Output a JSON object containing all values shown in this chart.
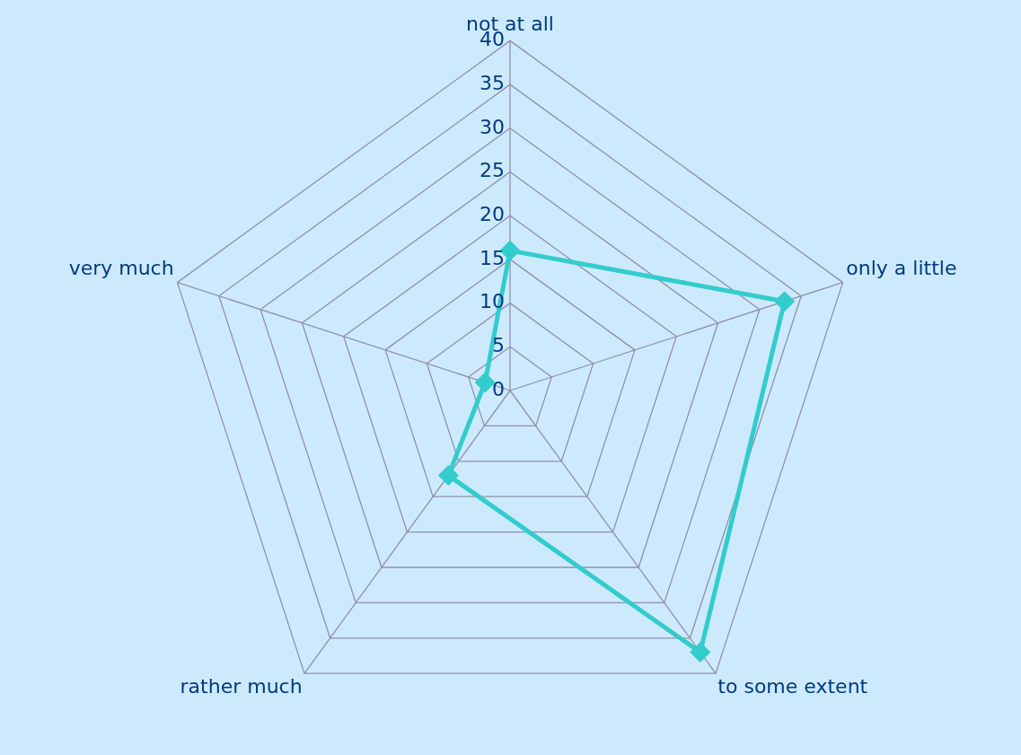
{
  "chart_data": {
    "type": "radar",
    "categories": [
      "not at all",
      "only a little",
      "to some extent",
      "rather much",
      "very much"
    ],
    "series": [
      {
        "color": "#33cccc",
        "values": [
          16,
          33,
          37,
          12,
          3
        ]
      }
    ],
    "ylim": [
      0,
      40
    ],
    "yticks": [
      0,
      5,
      10,
      15,
      20,
      25,
      30,
      35,
      40
    ],
    "grid": true,
    "marker": "diamond",
    "legend": false
  }
}
